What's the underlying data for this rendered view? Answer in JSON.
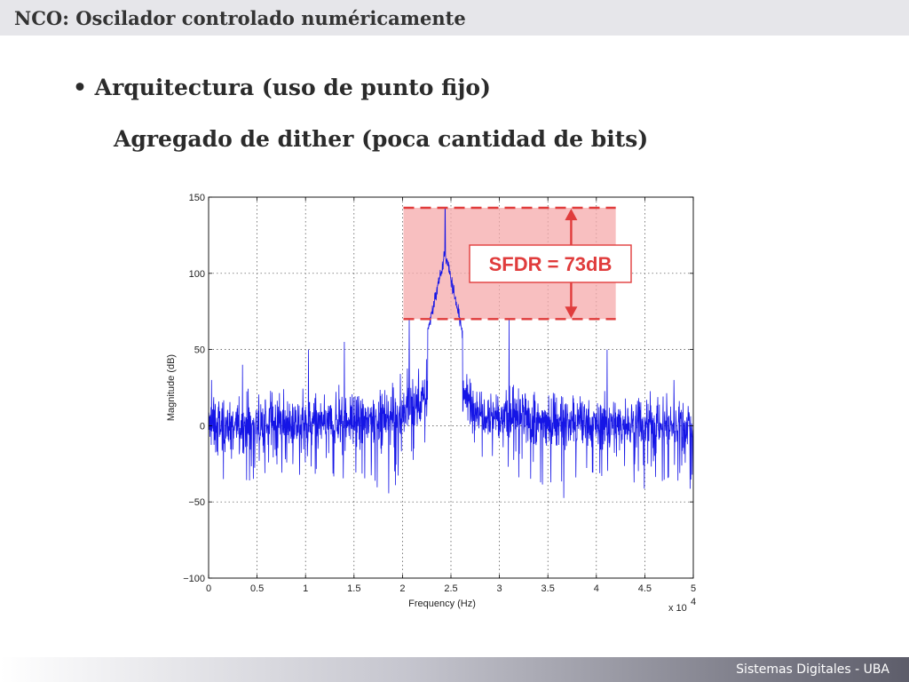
{
  "header": {
    "title": "NCO: Oscilador controlado numéricamente"
  },
  "content": {
    "bullet": "• Arquitectura (uso de punto fijo)",
    "subheading": "Agregado de dither (poca cantidad de bits)"
  },
  "footer": {
    "text": "Sistemas Digitales - UBA"
  },
  "colors": {
    "trace": "#1515e6",
    "annotation": "#e03c3c",
    "highlight": "#f5a9ab"
  },
  "chart_data": {
    "type": "line",
    "xlabel": "Frequency (Hz)",
    "ylabel": "Magnitude (dB)",
    "x_multiplier_label": "x 10",
    "x_multiplier_exponent": "4",
    "xlim": [
      0,
      50000
    ],
    "ylim": [
      -100,
      150
    ],
    "x_ticks": [
      "0",
      "0.5",
      "1",
      "1.5",
      "2",
      "2.5",
      "3",
      "3.5",
      "4",
      "4.5",
      "5"
    ],
    "y_ticks": [
      "−100",
      "−50",
      "0",
      "50",
      "100",
      "150"
    ],
    "grid": true,
    "noise_floor_db": 0,
    "carrier": {
      "x": 24400,
      "y": 143
    },
    "spurs": [
      {
        "x": 300,
        "y": 30
      },
      {
        "x": 3500,
        "y": 40
      },
      {
        "x": 10300,
        "y": 50
      },
      {
        "x": 14000,
        "y": 55
      },
      {
        "x": 20700,
        "y": 70
      },
      {
        "x": 31000,
        "y": 70
      },
      {
        "x": 41100,
        "y": 50
      },
      {
        "x": 48000,
        "y": 30
      }
    ],
    "sfdr_band": {
      "x_range": [
        20100,
        42000
      ],
      "top_db": 143,
      "bottom_db": 70
    },
    "annotation": "SFDR = 73dB"
  }
}
